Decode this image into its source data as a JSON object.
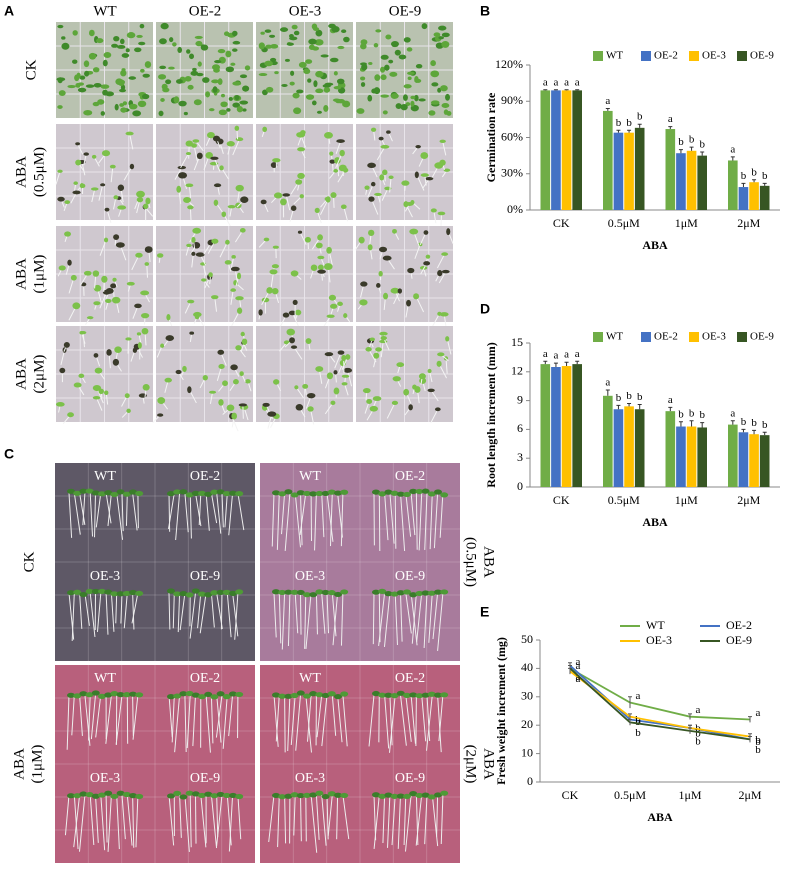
{
  "panels": {
    "a": {
      "label": "A",
      "columns": [
        "WT",
        "OE-2",
        "OE-3",
        "OE-9"
      ],
      "rows": [
        [
          "CK"
        ],
        [
          "ABA",
          "(0.5μM)"
        ],
        [
          "ABA",
          "(1μM)"
        ],
        [
          "ABA",
          "(2μM)"
        ]
      ]
    },
    "c": {
      "label": "C",
      "plates": [
        {
          "condition": [
            "CK"
          ],
          "genotypes": [
            "WT",
            "OE-2",
            "OE-3",
            "OE-9"
          ]
        },
        {
          "condition": [
            "ABA",
            "(0.5μM)"
          ],
          "genotypes": [
            "WT",
            "OE-2",
            "OE-3",
            "OE-9"
          ]
        },
        {
          "condition": [
            "ABA",
            "(1μM)"
          ],
          "genotypes": [
            "WT",
            "OE-2",
            "OE-3",
            "OE-9"
          ]
        },
        {
          "condition": [
            "ABA",
            "(2μM)"
          ],
          "genotypes": [
            "WT",
            "OE-2",
            "OE-3",
            "OE-9"
          ]
        }
      ]
    }
  },
  "chart_data": [
    {
      "panel": "B",
      "type": "bar",
      "y_label": "Germination rate",
      "x_label": "ABA",
      "categories": [
        "CK",
        "0.5μM",
        "1μM",
        "2μM"
      ],
      "ylim": [
        0,
        120
      ],
      "yticks": [
        {
          "value": 0,
          "label": "0%"
        },
        {
          "value": 30,
          "label": "30%"
        },
        {
          "value": 60,
          "label": "60%"
        },
        {
          "value": 90,
          "label": "90%"
        },
        {
          "value": 120,
          "label": "120%"
        }
      ],
      "series": [
        {
          "name": "WT",
          "color": "#70ad47",
          "values": [
            99,
            82,
            67,
            41
          ],
          "errors": [
            0.5,
            2,
            2,
            3
          ],
          "letters": [
            "a",
            "a",
            "a",
            "a"
          ]
        },
        {
          "name": "OE-2",
          "color": "#4472c4",
          "values": [
            99,
            64,
            47,
            19
          ],
          "errors": [
            0.5,
            2,
            3,
            3
          ],
          "letters": [
            "a",
            "b",
            "b",
            "b"
          ]
        },
        {
          "name": "OE-3",
          "color": "#ffc000",
          "values": [
            99,
            64,
            49,
            23
          ],
          "errors": [
            0.5,
            2,
            3,
            2
          ],
          "letters": [
            "a",
            "b",
            "b",
            "b"
          ]
        },
        {
          "name": "OE-9",
          "color": "#375623",
          "values": [
            99,
            68,
            45,
            20
          ],
          "errors": [
            0.5,
            3,
            3,
            2
          ],
          "letters": [
            "a",
            "b",
            "b",
            "b"
          ]
        }
      ]
    },
    {
      "panel": "D",
      "type": "bar",
      "y_label": "Root length increment (mm)",
      "x_label": "ABA",
      "categories": [
        "CK",
        "0.5μM",
        "1μM",
        "2μM"
      ],
      "ylim": [
        0,
        15
      ],
      "yticks": [
        0,
        3,
        6,
        9,
        12,
        15
      ],
      "series": [
        {
          "name": "WT",
          "color": "#70ad47",
          "values": [
            12.8,
            9.5,
            7.9,
            6.5
          ],
          "errors": [
            0.3,
            0.6,
            0.4,
            0.4
          ],
          "letters": [
            "a",
            "a",
            "a",
            "a"
          ]
        },
        {
          "name": "OE-2",
          "color": "#4472c4",
          "values": [
            12.5,
            8.1,
            6.3,
            5.7
          ],
          "errors": [
            0.4,
            0.4,
            0.5,
            0.3
          ],
          "letters": [
            "a",
            "b",
            "b",
            "b"
          ]
        },
        {
          "name": "OE-3",
          "color": "#ffc000",
          "values": [
            12.6,
            8.4,
            6.3,
            5.5
          ],
          "errors": [
            0.4,
            0.3,
            0.6,
            0.4
          ],
          "letters": [
            "a",
            "b",
            "b",
            "b"
          ]
        },
        {
          "name": "OE-9",
          "color": "#375623",
          "values": [
            12.8,
            8.1,
            6.2,
            5.4
          ],
          "errors": [
            0.3,
            0.5,
            0.5,
            0.3
          ],
          "letters": [
            "a",
            "b",
            "b",
            "b"
          ]
        }
      ]
    },
    {
      "panel": "E",
      "type": "line",
      "y_label": "Fresh weight increment (mg)",
      "x_label": "ABA",
      "categories": [
        "CK",
        "0.5μM",
        "1μM",
        "2μM"
      ],
      "ylim": [
        0,
        50
      ],
      "yticks": [
        0,
        10,
        20,
        30,
        40,
        50
      ],
      "series": [
        {
          "name": "WT",
          "color": "#70ad47",
          "values": [
            40,
            28,
            23,
            22
          ],
          "errors": [
            1,
            2,
            1,
            1
          ],
          "letters": [
            "a",
            "a",
            "a",
            "a"
          ]
        },
        {
          "name": "OE-2",
          "color": "#4472c4",
          "values": [
            41,
            22,
            19,
            15
          ],
          "errors": [
            1,
            1,
            1,
            1
          ],
          "letters": [
            "a",
            "b",
            "b",
            "b"
          ]
        },
        {
          "name": "OE-3",
          "color": "#ffc000",
          "values": [
            39,
            23,
            19,
            16
          ],
          "errors": [
            1,
            1,
            1,
            1
          ],
          "letters": [
            "a",
            "b",
            "b",
            "b"
          ]
        },
        {
          "name": "OE-9",
          "color": "#375623",
          "values": [
            40,
            21,
            18,
            15
          ],
          "errors": [
            1,
            1,
            1,
            1
          ],
          "letters": [
            "a",
            "b",
            "b",
            "b"
          ]
        }
      ]
    }
  ]
}
